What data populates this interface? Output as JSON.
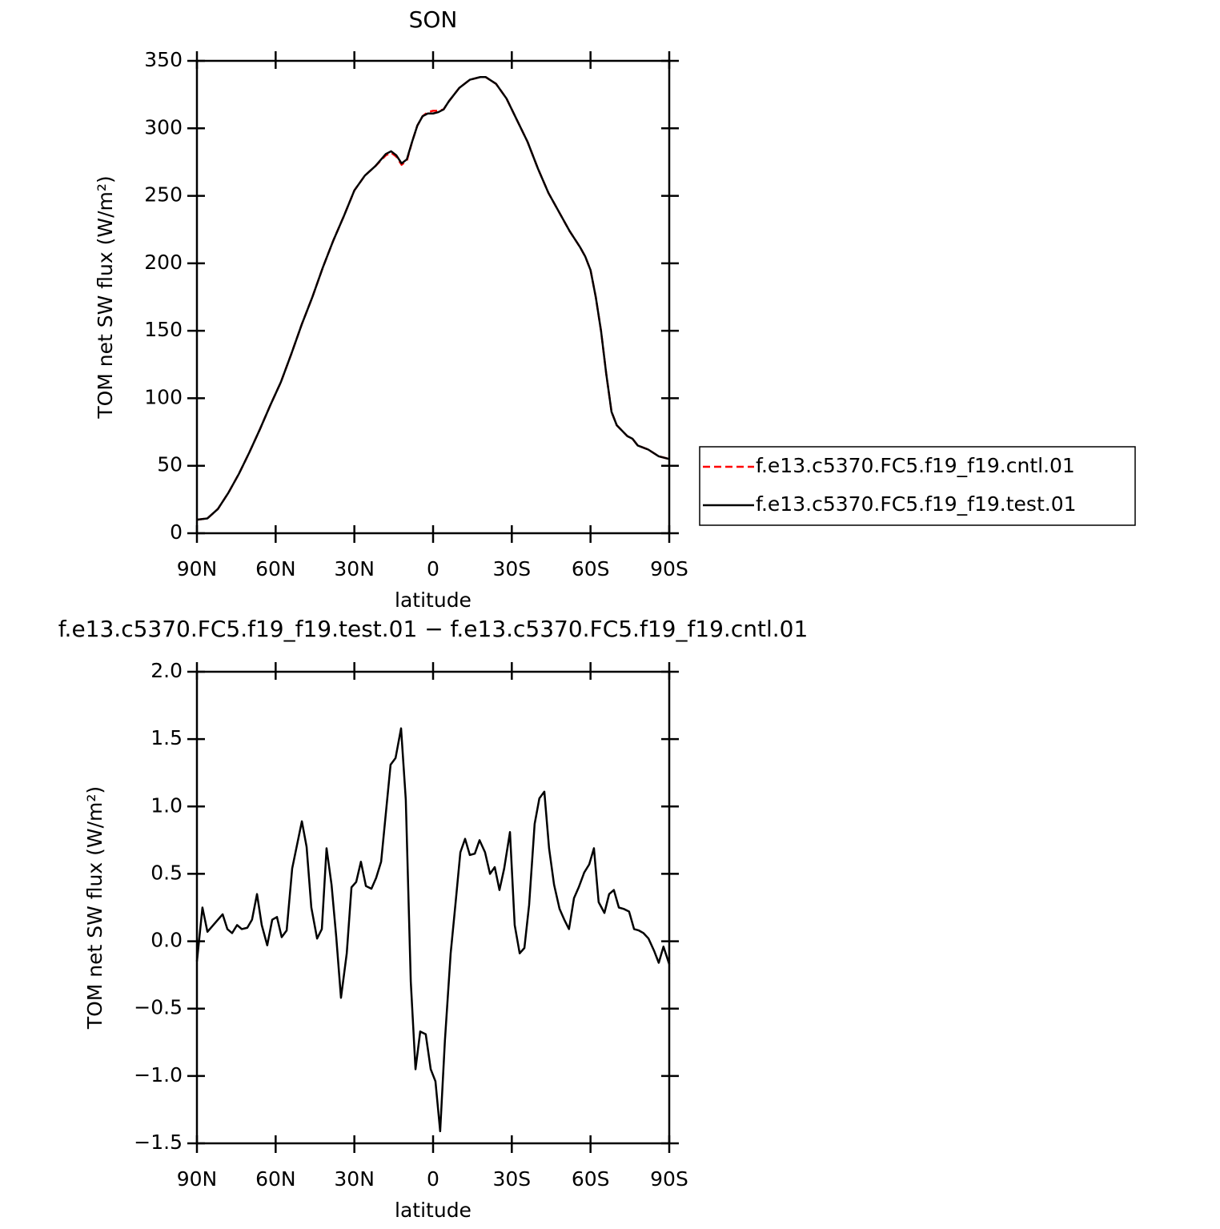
{
  "chart_data": [
    {
      "type": "line",
      "title": "SON",
      "xlabel": "latitude",
      "ylabel": "TOM net SW flux (W/m²)",
      "x": [
        90,
        86,
        82,
        78,
        74,
        70,
        66,
        62,
        58,
        54,
        50,
        46,
        42,
        38,
        34,
        30,
        26,
        22,
        18,
        16,
        14,
        12,
        10,
        8,
        6,
        4,
        2,
        0,
        -2,
        -4,
        -6,
        -10,
        -14,
        -18,
        -20,
        -24,
        -28,
        -32,
        -36,
        -40,
        -44,
        -48,
        -52,
        -56,
        -58,
        -60,
        -62,
        -64,
        -66,
        -68,
        -70,
        -74,
        -76,
        -78,
        -82,
        -86,
        -90
      ],
      "series": [
        {
          "name": "f.e13.c5370.FC5.f19_f19.cntl.01",
          "color": "#ff0000",
          "style": "dashed",
          "values": [
            10,
            11,
            18,
            30,
            44,
            60,
            77,
            95,
            112,
            133,
            155,
            175,
            197,
            217,
            235,
            254,
            265,
            272,
            280,
            282,
            279,
            273,
            276,
            290,
            302,
            309,
            312,
            313,
            313,
            314,
            320,
            330,
            336,
            338,
            338,
            333,
            322,
            306,
            290,
            270,
            252,
            238,
            224,
            212,
            205,
            195,
            175,
            150,
            118,
            90,
            80,
            72,
            70,
            65,
            62,
            57,
            55
          ]
        },
        {
          "name": "f.e13.c5370.FC5.f19_f19.test.01",
          "color": "#000000",
          "style": "solid",
          "values": [
            10,
            11,
            18,
            30,
            44,
            60,
            77,
            95,
            112,
            133,
            155,
            175,
            197,
            217,
            235,
            254,
            265,
            272,
            281,
            283,
            280,
            274,
            277,
            290,
            302,
            309,
            311,
            311,
            312,
            314,
            320,
            330,
            336,
            338,
            338,
            333,
            322,
            306,
            290,
            270,
            252,
            238,
            224,
            212,
            205,
            195,
            175,
            150,
            118,
            90,
            80,
            72,
            70,
            65,
            62,
            57,
            55
          ]
        }
      ],
      "xlim": [
        90,
        -90
      ],
      "xticks": [
        {
          "value": 90,
          "label": "90N"
        },
        {
          "value": 60,
          "label": "60N"
        },
        {
          "value": 30,
          "label": "30N"
        },
        0,
        {
          "value": -30,
          "label": "30S"
        },
        {
          "value": -60,
          "label": "60S"
        },
        {
          "value": -90,
          "label": "90S"
        }
      ],
      "ylim": [
        0,
        350
      ],
      "yticks": [
        0,
        50,
        100,
        150,
        200,
        250,
        300,
        350
      ],
      "legend": "right"
    },
    {
      "type": "line",
      "title": "f.e13.c5370.FC5.f19_f19.test.01 − f.e13.c5370.FC5.f19_f19.cntl.01",
      "xlabel": "latitude",
      "ylabel": "TOM net SW flux (W/m²)",
      "x": [
        90,
        87.9,
        86,
        80.2,
        78.4,
        76.6,
        74.7,
        72.9,
        70.8,
        69,
        67.1,
        65.3,
        63.2,
        61.3,
        59.5,
        57.7,
        55.8,
        53.7,
        50,
        48.2,
        46.4,
        44.2,
        42.4,
        40.6,
        38.7,
        36.9,
        35.1,
        32.9,
        31.1,
        29.3,
        27.5,
        25.6,
        23.5,
        21.7,
        19.8,
        18,
        16.2,
        14.3,
        12.2,
        10.4,
        8.5,
        6.7,
        4.9,
        2.8,
        0.9,
        -0.9,
        -2.7,
        -4.5,
        -6.7,
        -8.5,
        -10.4,
        -12.2,
        -14,
        -15.9,
        -17.7,
        -19.8,
        -21.7,
        -23.5,
        -25.3,
        -27.1,
        -29.3,
        -31.1,
        -33,
        -34.8,
        -36.6,
        -38.7,
        -40.5,
        -42.4,
        -44.2,
        -46.1,
        -48.2,
        -50,
        -51.8,
        -53.7,
        -55.5,
        -57.6,
        -59.5,
        -61.3,
        -63.1,
        -65.3,
        -67.1,
        -68.9,
        -70.8,
        -72.6,
        -74.7,
        -76.6,
        -78.4,
        -80.2,
        -82.1,
        -84.2,
        -86,
        -87.8,
        -90
      ],
      "series": [
        {
          "color": "#000000",
          "style": "solid",
          "values": [
            -0.15,
            0.25,
            0.07,
            0.2,
            0.09,
            0.06,
            0.12,
            0.09,
            0.1,
            0.16,
            0.35,
            0.12,
            -0.03,
            0.16,
            0.18,
            0.03,
            0.08,
            0.54,
            0.89,
            0.7,
            0.25,
            0.02,
            0.09,
            0.69,
            0.42,
            0.03,
            -0.42,
            -0.09,
            0.4,
            0.44,
            0.59,
            0.41,
            0.39,
            0.47,
            0.59,
            0.95,
            1.31,
            1.36,
            1.58,
            1.05,
            -0.3,
            -0.95,
            -0.67,
            -0.69,
            -0.95,
            -1.04,
            -1.41,
            -0.74,
            -0.09,
            0.27,
            0.66,
            0.76,
            0.64,
            0.65,
            0.75,
            0.66,
            0.5,
            0.55,
            0.38,
            0.54,
            0.81,
            0.12,
            -0.09,
            -0.05,
            0.27,
            0.87,
            1.06,
            1.11,
            0.69,
            0.42,
            0.24,
            0.16,
            0.09,
            0.32,
            0.4,
            0.51,
            0.57,
            0.69,
            0.29,
            0.21,
            0.35,
            0.38,
            0.25,
            0.24,
            0.22,
            0.09,
            0.08,
            0.06,
            0.02,
            -0.07,
            -0.16,
            -0.04,
            -0.17
          ]
        }
      ],
      "xlim": [
        90,
        -90
      ],
      "xticks": [
        {
          "value": 90,
          "label": "90N"
        },
        {
          "value": 60,
          "label": "60N"
        },
        {
          "value": 30,
          "label": "30N"
        },
        0,
        {
          "value": -30,
          "label": "30S"
        },
        {
          "value": -60,
          "label": "60S"
        },
        {
          "value": -90,
          "label": "90S"
        }
      ],
      "ylim": [
        -1.5,
        2
      ],
      "yticks": [
        {
          "value": -1.5,
          "label": "−1.5"
        },
        {
          "value": -1,
          "label": "−1.0"
        },
        {
          "value": -0.5,
          "label": "−0.5"
        },
        {
          "value": 0,
          "label": "0.0"
        },
        0.5,
        {
          "value": 1,
          "label": "1.0"
        },
        1.5,
        {
          "value": 2,
          "label": "2.0"
        }
      ]
    }
  ]
}
